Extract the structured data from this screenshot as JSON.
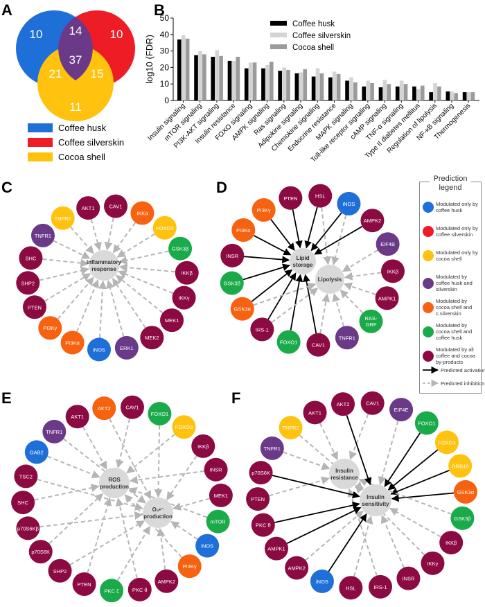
{
  "panels": {
    "a": "A",
    "b": "B",
    "c": "C",
    "d": "D",
    "e": "E",
    "f": "F"
  },
  "colors": {
    "husk": "#1f6fd8",
    "silverskin": "#ee1c25",
    "cocoa": "#ffc20e",
    "husk_silverskin": "#6a3a88",
    "cocoa_silverskin": "#f6620f",
    "cocoa_husk": "#1aaa4a",
    "all": "#8c0a42",
    "center": "#d9d9d9",
    "bar_husk": "#000000",
    "bar_silverskin": "#d4d4d4",
    "bar_cocoa": "#9b9b9b"
  },
  "venn": {
    "husk_only": "10",
    "silverskin_only": "10",
    "cocoa_only": "11",
    "husk_silverskin": "14",
    "husk_cocoa": "21",
    "silverskin_cocoa": "15",
    "all": "37",
    "legend": [
      "Coffee husk",
      "Coffee silverskin",
      "Cocoa shell"
    ]
  },
  "chart_data": {
    "type": "bar",
    "ylabel": "log10 (FDR)",
    "ylim": [
      0,
      50
    ],
    "yticks": [
      0,
      10,
      20,
      30,
      40,
      50
    ],
    "legend_position": "top-center",
    "categories": [
      "Insulin signaling",
      "mTOR signaling",
      "PI3K-AKT signaling",
      "Insulin resistance",
      "FOXO signaling",
      "AMPK signaling",
      "Ras signaling",
      "Adipokine signaling",
      "Chemokine signaling",
      "Endocrine resistance",
      "MAPK signaling",
      "Toll-like receptor signaling",
      "cAMP signaling",
      "TNF-α signaling",
      "Type II diabetes mellitus",
      "Regulation of lipolysis",
      "NF-κB signaling",
      "Thermogenesis"
    ],
    "series": [
      {
        "name": "Coffee husk",
        "values": [
          37,
          27.5,
          26.5,
          24,
          19.5,
          19.5,
          18,
          16.5,
          14.5,
          14,
          12,
          8.5,
          8,
          8.5,
          8.5,
          5,
          5.5,
          5
        ]
      },
      {
        "name": "Coffee silverskin",
        "values": [
          39.5,
          30,
          30.5,
          24,
          23,
          21.5,
          20,
          17,
          19.5,
          17.5,
          14,
          12,
          12.5,
          12,
          7,
          10.5,
          5.5,
          5
        ]
      },
      {
        "name": "Cocoa shell",
        "values": [
          37.5,
          28,
          27,
          26.5,
          23,
          23.5,
          18.5,
          19,
          16.5,
          16,
          11,
          10.5,
          10,
          10,
          9,
          8.5,
          4.5,
          5
        ]
      }
    ]
  },
  "legend": {
    "title": "Prediction legend",
    "items": [
      {
        "key": "husk",
        "label": "Modulated only by coffee husk"
      },
      {
        "key": "silverskin",
        "label": "Modulated only by coffee silverskin"
      },
      {
        "key": "cocoa",
        "label": "Modulated only by cocoa shell"
      },
      {
        "key": "husk_silverskin",
        "label": "Modulated by coffee husk and silverskin"
      },
      {
        "key": "cocoa_silverskin",
        "label": "Modulated by cocoa shell and c.silverskin"
      },
      {
        "key": "cocoa_husk",
        "label": "Modulated by cocoa shell and coffee husk"
      },
      {
        "key": "all",
        "label": "Modulated by all coffee and cocoa by-products"
      }
    ],
    "activation": "Predicted activation",
    "inhibition": "Predicted inhibition"
  },
  "networks": [
    {
      "id": "c",
      "centers": [
        "Inflammatory response"
      ],
      "nodes": [
        [
          "CAV1",
          "all"
        ],
        [
          "IKKα",
          "cocoa_silverskin"
        ],
        [
          "FOXO3",
          "cocoa"
        ],
        [
          "GSK3β",
          "cocoa_husk"
        ],
        [
          "IKKβ",
          "all"
        ],
        [
          "IKKγ",
          "all"
        ],
        [
          "MEK1",
          "all"
        ],
        [
          "MEK2",
          "all"
        ],
        [
          "ERK1",
          "husk_silverskin"
        ],
        [
          "iNOS",
          "husk"
        ],
        [
          "PI3Kα",
          "cocoa_silverskin"
        ],
        [
          "PI3Kγ",
          "cocoa_silverskin"
        ],
        [
          "PTEN",
          "all"
        ],
        [
          "SHP2",
          "all"
        ],
        [
          "SHC",
          "all"
        ],
        [
          "TNFR1",
          "husk_silverskin"
        ],
        [
          "TNFR2",
          "cocoa"
        ],
        [
          "AKT1",
          "all"
        ]
      ],
      "activation": [],
      "activation_target": []
    },
    {
      "id": "d",
      "centers": [
        "Lipid storage",
        "Lipolysis"
      ],
      "nodes": [
        [
          "HSL",
          "all"
        ],
        [
          "iNOS",
          "husk"
        ],
        [
          "AMPK2",
          "all"
        ],
        [
          "EIF4B",
          "husk_silverskin"
        ],
        [
          "IKKβ",
          "all"
        ],
        [
          "AMPK1",
          "all"
        ],
        [
          "RAS-GRF",
          "cocoa_husk"
        ],
        [
          "TNFR1",
          "husk_silverskin"
        ],
        [
          "CAV1",
          "all"
        ],
        [
          "FOXO1",
          "cocoa_husk"
        ],
        [
          "IRS-1",
          "all"
        ],
        [
          "GSK3α",
          "cocoa_silverskin"
        ],
        [
          "GSK3β",
          "cocoa_husk"
        ],
        [
          "INSR",
          "all"
        ],
        [
          "PI3Kα",
          "cocoa_silverskin"
        ],
        [
          "PI3Kγ",
          "cocoa_silverskin"
        ],
        [
          "PTEN",
          "all"
        ]
      ],
      "activation": [
        "HSL",
        "iNOS",
        "AMPK2",
        "CAV1",
        "FOXO1",
        "IRS-1",
        "GSK3α",
        "GSK3β",
        "INSR",
        "PI3Kα",
        "PI3Kγ",
        "PTEN"
      ],
      "activation_target": 0
    },
    {
      "id": "e",
      "centers": [
        "ROS production",
        "O₂•⁻ production"
      ],
      "nodes": [
        [
          "CAV1",
          "all"
        ],
        [
          "FOXO1",
          "cocoa_husk"
        ],
        [
          "FOXO3",
          "cocoa"
        ],
        [
          "IKKβ",
          "all"
        ],
        [
          "INSR",
          "all"
        ],
        [
          "MEK1",
          "all"
        ],
        [
          "mTOR",
          "cocoa_husk"
        ],
        [
          "iNOS",
          "husk"
        ],
        [
          "PI3Kγ",
          "cocoa_silverskin"
        ],
        [
          "AMPK2",
          "all"
        ],
        [
          "PKC θ",
          "all"
        ],
        [
          "PKC ζ",
          "cocoa_husk"
        ],
        [
          "PTEN",
          "all"
        ],
        [
          "SHP2",
          "all"
        ],
        [
          "p70S6K",
          "all"
        ],
        [
          "p70S6Kβ",
          "all"
        ],
        [
          "SHC",
          "all"
        ],
        [
          "TSC2",
          "all"
        ],
        [
          "GAB2",
          "husk"
        ],
        [
          "TNFR1",
          "husk_silverskin"
        ],
        [
          "AKT1",
          "all"
        ],
        [
          "AKT2",
          "cocoa_silverskin"
        ]
      ],
      "activation": [],
      "activation_target": 0
    },
    {
      "id": "f",
      "centers": [
        "Insulin resistance",
        "Insulin sensitivity"
      ],
      "nodes": [
        [
          "CAV1",
          "all"
        ],
        [
          "EIF4E",
          "husk_silverskin"
        ],
        [
          "FOXO1",
          "cocoa_husk"
        ],
        [
          "FOXO3",
          "cocoa"
        ],
        [
          "GRB10",
          "cocoa"
        ],
        [
          "GSK3α",
          "cocoa_silverskin"
        ],
        [
          "GSK3β",
          "cocoa_husk"
        ],
        [
          "IKKβ",
          "all"
        ],
        [
          "IKKγ",
          "all"
        ],
        [
          "INSR",
          "all"
        ],
        [
          "IRS-1",
          "all"
        ],
        [
          "HSL",
          "all"
        ],
        [
          "iNOS",
          "husk"
        ],
        [
          "AMPK2",
          "all"
        ],
        [
          "AMPK1",
          "all"
        ],
        [
          "PKC θ",
          "all"
        ],
        [
          "PTEN",
          "all"
        ],
        [
          "p70S6K",
          "all"
        ],
        [
          "TNFR1",
          "husk_silverskin"
        ],
        [
          "TNFR2",
          "cocoa"
        ],
        [
          "AKT1",
          "all"
        ],
        [
          "AKT2",
          "all"
        ]
      ],
      "activation": [
        "AKT2",
        "FOXO1",
        "FOXO3",
        "GRB10",
        "GSK3α",
        "p70S6K",
        "PKC θ",
        "AMPK1",
        "iNOS"
      ],
      "activation_target": 1
    }
  ]
}
